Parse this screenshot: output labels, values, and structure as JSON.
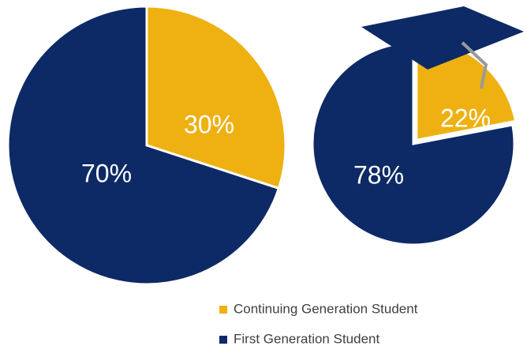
{
  "chart_data": [
    {
      "type": "pie",
      "categories": [
        "Continuing Generation Student",
        "First Generation Student"
      ],
      "values": [
        30,
        70
      ],
      "value_labels": [
        "30%",
        "70%"
      ],
      "colors": [
        "#EEB111",
        "#0D2A66"
      ]
    },
    {
      "type": "pie",
      "categories": [
        "Continuing Generation Student",
        "First Generation Student"
      ],
      "values": [
        22,
        78
      ],
      "value_labels": [
        "22%",
        "78%"
      ],
      "colors": [
        "#EEB111",
        "#0D2A66"
      ]
    }
  ]
}
